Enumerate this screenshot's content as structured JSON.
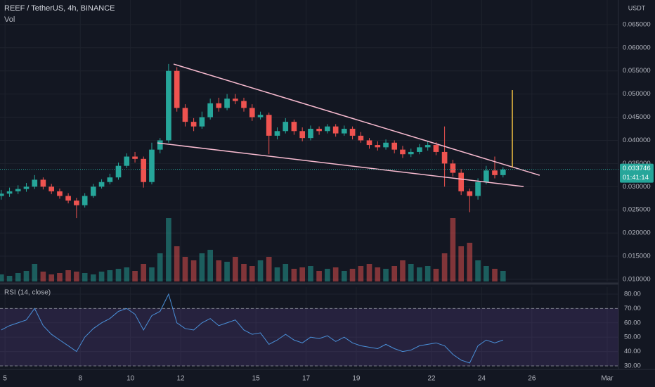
{
  "chart_data": {
    "type": "candlestick",
    "title": "REEF / TetherUS, 4h, BINANCE",
    "volume_label": "Vol",
    "currency": "USDT",
    "up_color": "#26a69a",
    "down_color": "#ef5350",
    "grid": true,
    "x": [
      4.85,
      5.18,
      5.52,
      5.85,
      6.18,
      6.52,
      6.85,
      7.18,
      7.52,
      7.85,
      8.18,
      8.52,
      8.85,
      9.18,
      9.52,
      9.85,
      10.18,
      10.52,
      10.85,
      11.18,
      11.52,
      11.85,
      12.18,
      12.52,
      12.85,
      13.18,
      13.52,
      13.85,
      14.18,
      14.52,
      14.85,
      15.18,
      15.52,
      15.85,
      16.18,
      16.52,
      16.85,
      17.18,
      17.52,
      17.85,
      18.18,
      18.52,
      18.85,
      19.18,
      19.52,
      19.85,
      20.18,
      20.52,
      20.85,
      21.18,
      21.52,
      21.85,
      22.18,
      22.52,
      22.85,
      23.18,
      23.52,
      23.85,
      24.18,
      24.52,
      24.85
    ],
    "open": [
      0.028,
      0.0285,
      0.029,
      0.0295,
      0.03,
      0.0315,
      0.03,
      0.029,
      0.028,
      0.027,
      0.026,
      0.028,
      0.03,
      0.031,
      0.032,
      0.0345,
      0.0365,
      0.036,
      0.031,
      0.038,
      0.04,
      0.055,
      0.047,
      0.044,
      0.043,
      0.045,
      0.048,
      0.047,
      0.049,
      0.0485,
      0.047,
      0.045,
      0.0455,
      0.041,
      0.042,
      0.044,
      0.042,
      0.0405,
      0.0425,
      0.042,
      0.043,
      0.0415,
      0.0425,
      0.041,
      0.04,
      0.039,
      0.0385,
      0.0395,
      0.038,
      0.037,
      0.0375,
      0.0385,
      0.039,
      0.0375,
      0.035,
      0.033,
      0.029,
      0.028,
      0.031,
      0.0335,
      0.0325
    ],
    "high": [
      0.0293,
      0.0298,
      0.0303,
      0.0308,
      0.0325,
      0.032,
      0.0306,
      0.0296,
      0.0286,
      0.0276,
      0.0286,
      0.0306,
      0.0316,
      0.0328,
      0.0352,
      0.0372,
      0.0375,
      0.0365,
      0.0395,
      0.0405,
      0.0565,
      0.0558,
      0.0478,
      0.0448,
      0.0462,
      0.049,
      0.0492,
      0.05,
      0.05,
      0.0492,
      0.0478,
      0.0462,
      0.046,
      0.0428,
      0.0448,
      0.0445,
      0.0428,
      0.0432,
      0.043,
      0.0435,
      0.0435,
      0.0432,
      0.043,
      0.0418,
      0.0405,
      0.0398,
      0.0402,
      0.04,
      0.0388,
      0.0382,
      0.0392,
      0.0398,
      0.0396,
      0.043,
      0.0358,
      0.0338,
      0.0296,
      0.0318,
      0.0345,
      0.0365,
      0.0342
    ],
    "low": [
      0.0272,
      0.0278,
      0.0284,
      0.0289,
      0.0295,
      0.0294,
      0.0284,
      0.0274,
      0.0264,
      0.0232,
      0.0255,
      0.0276,
      0.0296,
      0.0305,
      0.0315,
      0.034,
      0.0352,
      0.0298,
      0.0305,
      0.0372,
      0.0395,
      0.0462,
      0.043,
      0.042,
      0.0425,
      0.0445,
      0.0462,
      0.0465,
      0.0478,
      0.0462,
      0.0442,
      0.0445,
      0.037,
      0.0402,
      0.0415,
      0.0412,
      0.0398,
      0.04,
      0.0412,
      0.0415,
      0.0408,
      0.041,
      0.0402,
      0.0395,
      0.0382,
      0.0378,
      0.038,
      0.0372,
      0.0362,
      0.0364,
      0.037,
      0.0378,
      0.0368,
      0.03,
      0.0322,
      0.0282,
      0.0245,
      0.0272,
      0.0305,
      0.0318,
      0.032
    ],
    "close": [
      0.0285,
      0.029,
      0.0295,
      0.03,
      0.0315,
      0.03,
      0.029,
      0.028,
      0.027,
      0.026,
      0.028,
      0.03,
      0.031,
      0.032,
      0.0345,
      0.0365,
      0.036,
      0.031,
      0.038,
      0.04,
      0.055,
      0.047,
      0.044,
      0.043,
      0.045,
      0.048,
      0.047,
      0.049,
      0.0485,
      0.047,
      0.045,
      0.0455,
      0.041,
      0.042,
      0.044,
      0.042,
      0.0405,
      0.0425,
      0.042,
      0.043,
      0.0415,
      0.0425,
      0.041,
      0.04,
      0.039,
      0.0385,
      0.0395,
      0.038,
      0.037,
      0.0375,
      0.0385,
      0.039,
      0.0375,
      0.035,
      0.033,
      0.029,
      0.028,
      0.031,
      0.0335,
      0.0325,
      0.0337
    ],
    "xlim": [
      4.8,
      29.45
    ],
    "xticks": [
      5,
      8,
      10,
      12,
      15,
      17,
      19,
      22,
      24,
      26,
      {
        "value": 29,
        "label": "Mar"
      }
    ],
    "ylim": [
      0.00954,
      0.0703
    ],
    "yticks": [
      {
        "value": 0.01,
        "label": "0.010000"
      },
      {
        "value": 0.015,
        "label": "0.015000"
      },
      {
        "value": 0.02,
        "label": "0.020000"
      },
      {
        "value": 0.025,
        "label": "0.025000"
      },
      {
        "value": 0.03,
        "label": "0.030000"
      },
      {
        "value": 0.035,
        "label": "0.035000"
      },
      {
        "value": 0.04,
        "label": "0.040000"
      },
      {
        "value": 0.045,
        "label": "0.045000"
      },
      {
        "value": 0.05,
        "label": "0.050000"
      },
      {
        "value": 0.055,
        "label": "0.055000"
      },
      {
        "value": 0.06,
        "label": "0.060000"
      },
      {
        "value": 0.065,
        "label": "0.065000"
      }
    ],
    "last_price": {
      "value": 0.033746,
      "label": "0.033746"
    },
    "countdown": "01:41:14",
    "volume": {
      "ylim": [
        0,
        100
      ],
      "values": [
        10,
        8,
        12,
        15,
        25,
        14,
        10,
        12,
        16,
        14,
        12,
        10,
        14,
        16,
        18,
        20,
        15,
        25,
        20,
        40,
        90,
        50,
        35,
        30,
        40,
        45,
        30,
        28,
        35,
        25,
        22,
        30,
        35,
        20,
        25,
        18,
        20,
        22,
        15,
        18,
        20,
        15,
        18,
        22,
        25,
        20,
        18,
        22,
        30,
        25,
        20,
        22,
        18,
        40,
        90,
        50,
        55,
        30,
        22,
        18,
        15
      ]
    },
    "lines": [
      {
        "x": [
          11.72,
          26.31
        ],
        "y": [
          0.05647,
          0.03246
        ],
        "color": "#f8bbd0"
      },
      {
        "x": [
          11.07,
          25.67
        ],
        "y": [
          0.03945,
          0.03003
        ],
        "color": "#f8bbd0"
      },
      {
        "x": [
          25.22,
          25.22
        ],
        "y": [
          0.05085,
          0.03413
        ],
        "color": "#f5c242"
      }
    ],
    "rsi": {
      "label": "RSI (14, close)",
      "color": "#4a90d9",
      "band_color": "#7e57c2",
      "bands": [
        30,
        70
      ],
      "ylim": [
        29.0,
        84.9
      ],
      "yticks": [
        {
          "value": 30,
          "label": "30.00"
        },
        {
          "value": 40,
          "label": "40.00"
        },
        {
          "value": 50,
          "label": "50.00"
        },
        {
          "value": 60,
          "label": "60.00"
        },
        {
          "value": 70,
          "label": "70.00"
        },
        {
          "value": 80,
          "label": "80.00"
        }
      ],
      "values": [
        55,
        58,
        60,
        62,
        70,
        58,
        52,
        48,
        44,
        40,
        50,
        56,
        60,
        63,
        68,
        70,
        66,
        55,
        65,
        68,
        80,
        60,
        56,
        55,
        60,
        63,
        58,
        60,
        62,
        55,
        52,
        53,
        45,
        48,
        52,
        48,
        46,
        50,
        49,
        51,
        47,
        50,
        46,
        44,
        43,
        42,
        45,
        42,
        40,
        41,
        44,
        45,
        46,
        44,
        38,
        34,
        32,
        44,
        48,
        46,
        48
      ]
    }
  }
}
